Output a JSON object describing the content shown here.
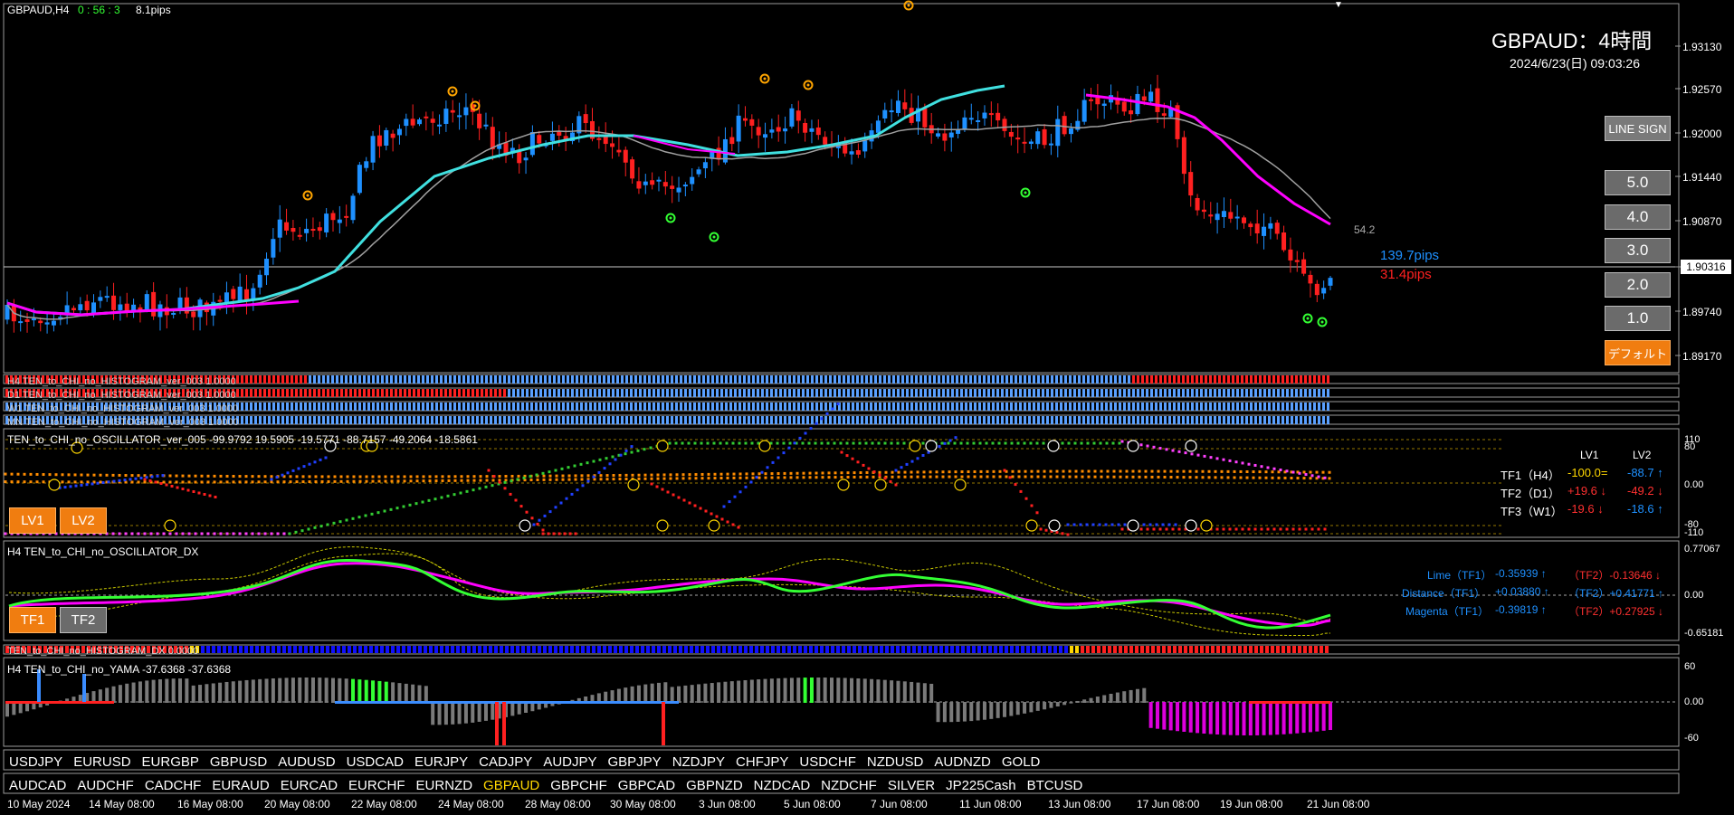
{
  "header": {
    "symbol_tf": "GBPAUD,H4",
    "timer": "0 : 56 : 3",
    "spread": "8.1pips",
    "title": "GBPAUD：4時間",
    "datetime": "2024/6/23(日) 09:03:26"
  },
  "price_axis": {
    "ticks": [
      "1.93130",
      "1.92570",
      "1.92000",
      "1.91440",
      "1.90870",
      "1.90316",
      "1.89740",
      "1.89170"
    ],
    "current": "1.90316"
  },
  "annotations": {
    "value_542": "54.2",
    "pips_blue": "139.7pips",
    "pips_red": "31.4pips"
  },
  "right_buttons": {
    "line_sign": "LINE SIGN",
    "b5": "5.0",
    "b4": "4.0",
    "b3": "3.0",
    "b2": "2.0",
    "b1": "1.0",
    "default": "デフォルト"
  },
  "histogram_labels": [
    "H4 TEN_to_CHI_no_HISTOGRAM_ver_003 1.0000",
    "D1 TEN_to_CHI_no_HISTOGRAM_ver_003 1.0000",
    "W1 TEN_to_CHI_no_HISTOGRAM_ver_003 1.0000",
    "MN TEN_to_CHI_no_HISTOGRAM_ver_003 1.0000"
  ],
  "oscillator": {
    "label": "TEN_to_CHI_no_OSCILLATOR_ver_005 -99.9792 19.5905 -19.5771 -88.7157 -49.2064 -18.5861",
    "axis": [
      "110",
      "80",
      "0.00",
      "-80",
      "-110"
    ],
    "table_header": [
      "LV1",
      "LV2"
    ],
    "rows": [
      {
        "name": "TF1（H4）",
        "lv1": "-100.0=",
        "lv2": "-88.7 ↑"
      },
      {
        "name": "TF2（D1）",
        "lv1": "+19.6 ↓",
        "lv2": "-49.2 ↓"
      },
      {
        "name": "TF3（W1）",
        "lv1": "-19.6 ↓",
        "lv2": "-18.6 ↑"
      }
    ],
    "btn_lv1": "LV1",
    "btn_lv2": "LV2"
  },
  "dx": {
    "label": "H4 TEN_to_CHI_no_OSCILLATOR_DX",
    "axis": [
      "0.77067",
      "0.00",
      "-0.65181"
    ],
    "lines": [
      {
        "name": "Lime（TF1）",
        "tf1": "-0.35939 ↑",
        "tf2": "（TF2）-0.13646 ↓"
      },
      {
        "name": "Distance（TF1）",
        "tf1": "+0.03880 ↑",
        "tf2": "（TF2）+0.41771 ↑"
      },
      {
        "name": "Magenta（TF1）",
        "tf1": "-0.39819 ↑",
        "tf2": "（TF2）+0.27925 ↓"
      }
    ],
    "btn_tf1": "TF1",
    "btn_tf2": "TF2"
  },
  "dx_hist_label": "TEN_to_CHI_no_HISTOGRAM_DX 0.0000",
  "yama": {
    "label": "H4  TEN_to_CHI_no_YAMA -37.6368 -37.6368",
    "axis": [
      "60",
      "0.00",
      "-60"
    ]
  },
  "symbols_row1": [
    "USDJPY",
    "EURUSD",
    "EURGBP",
    "GBPUSD",
    "AUDUSD",
    "USDCAD",
    "EURJPY",
    "CADJPY",
    "AUDJPY",
    "GBPJPY",
    "NZDJPY",
    "CHFJPY",
    "USDCHF",
    "NZDUSD",
    "AUDNZD",
    "GOLD"
  ],
  "symbols_row2": [
    "AUDCAD",
    "AUDCHF",
    "CADCHF",
    "EURAUD",
    "EURCAD",
    "EURCHF",
    "EURNZD",
    "GBPAUD",
    "GBPCHF",
    "GBPCAD",
    "GBPNZD",
    "NZDCAD",
    "NZDCHF",
    "SILVER",
    "JP225Cash",
    "BTCUSD"
  ],
  "active_symbol": "GBPAUD",
  "dates": [
    "10 May 2024",
    "14 May 08:00",
    "16 May 08:00",
    "20 May 08:00",
    "22 May 08:00",
    "24 May 08:00",
    "28 May 08:00",
    "30 May 08:00",
    "3 Jun 08:00",
    "5 Jun 08:00",
    "7 Jun 08:00",
    "11 Jun 08:00",
    "13 Jun 08:00",
    "17 Jun 08:00",
    "19 Jun 08:00",
    "21 Jun 08:00"
  ],
  "colors": {
    "bull": "#1e90ff",
    "bear": "#ff2020",
    "ma_fast": "#40e0e0",
    "ma_slow": "#ff00ff",
    "lime": "#33ff33",
    "orange": "#ffa500"
  }
}
